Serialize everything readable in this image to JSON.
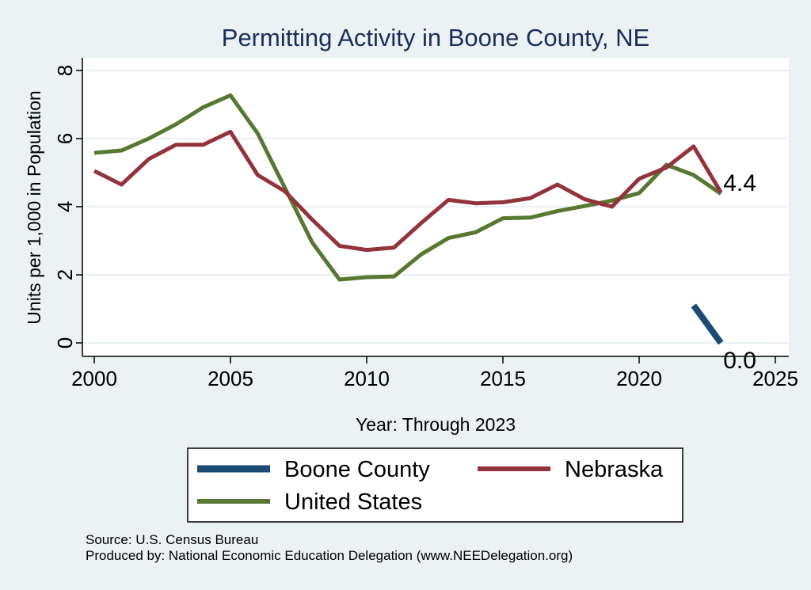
{
  "chart_data": {
    "type": "line",
    "title": "Permitting Activity in Boone County, NE",
    "xlabel": "Year: Through 2023",
    "ylabel": "Units per 1,000 in Population",
    "xlim": [
      2000,
      2025
    ],
    "ylim": [
      0,
      8
    ],
    "x_ticks": [
      2000,
      2005,
      2010,
      2015,
      2020,
      2025
    ],
    "y_ticks": [
      0,
      2,
      4,
      6,
      8
    ],
    "grid": true,
    "legend_position": "bottom",
    "series": [
      {
        "name": "Boone County",
        "color": "#1b4a72",
        "x": [
          2022,
          2023
        ],
        "values": [
          1.1,
          0.0
        ],
        "end_label": "0.0"
      },
      {
        "name": "Nebraska",
        "color": "#93343d",
        "x": [
          2000,
          2001,
          2002,
          2003,
          2004,
          2005,
          2006,
          2007,
          2008,
          2009,
          2010,
          2011,
          2012,
          2013,
          2014,
          2015,
          2016,
          2017,
          2018,
          2019,
          2020,
          2021,
          2022,
          2023
        ],
        "values": [
          5.05,
          4.65,
          5.4,
          5.82,
          5.82,
          6.2,
          4.93,
          4.45,
          3.62,
          2.85,
          2.73,
          2.8,
          3.52,
          4.2,
          4.1,
          4.13,
          4.25,
          4.65,
          4.22,
          4.0,
          4.82,
          5.15,
          5.77,
          4.42
        ],
        "end_label": "4.4"
      },
      {
        "name": "United States",
        "color": "#567830",
        "x": [
          2000,
          2001,
          2002,
          2003,
          2004,
          2005,
          2006,
          2007,
          2008,
          2009,
          2010,
          2011,
          2012,
          2013,
          2014,
          2015,
          2016,
          2017,
          2018,
          2019,
          2020,
          2021,
          2022,
          2023
        ],
        "values": [
          5.58,
          5.65,
          6.0,
          6.42,
          6.92,
          7.27,
          6.15,
          4.55,
          2.95,
          1.86,
          1.93,
          1.95,
          2.6,
          3.08,
          3.25,
          3.66,
          3.68,
          3.87,
          4.02,
          4.18,
          4.4,
          5.23,
          4.93,
          4.38
        ]
      }
    ],
    "legend": [
      {
        "label": "Boone County",
        "color": "#1b4a72"
      },
      {
        "label": "Nebraska",
        "color": "#93343d"
      },
      {
        "label": "United States",
        "color": "#567830"
      }
    ]
  },
  "footer": {
    "source": "Source: U.S. Census Bureau",
    "produced_by": "Produced by: National Economic Education Delegation (www.NEEDelegation.org)"
  }
}
